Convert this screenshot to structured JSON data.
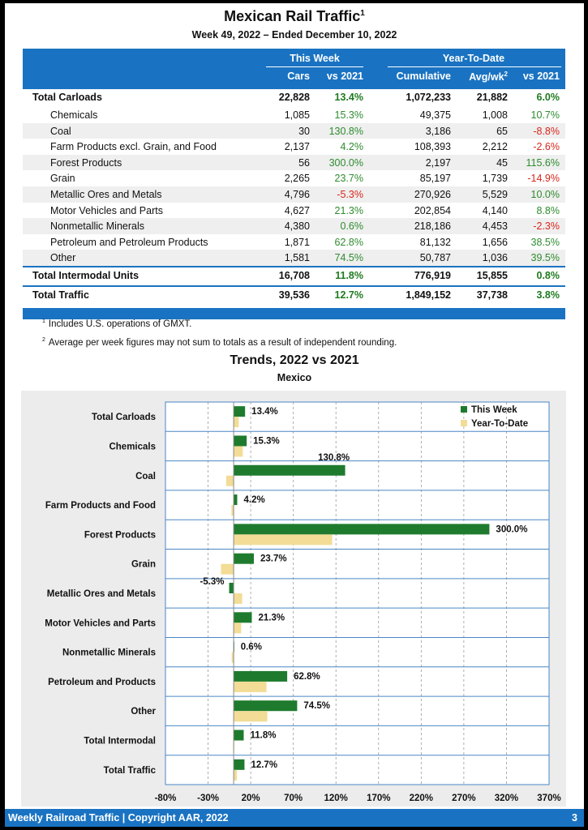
{
  "header": {
    "title": "Mexican Rail Traffic",
    "title_sup": "1",
    "subtitle": "Week 49, 2022 – Ended December 10, 2022"
  },
  "table": {
    "group_this_week": "This Week",
    "group_ytd": "Year-To-Date",
    "col_cars": "Cars",
    "col_vs2021": "vs 2021",
    "col_cumulative": "Cumulative",
    "col_avgwk": "Avg/wk",
    "col_avgwk_sup": "2",
    "col_vs2021_ytd": "vs 2021",
    "rows": [
      {
        "label": "Total Carloads",
        "cars": "22,828",
        "vs": "13.4%",
        "cum": "1,072,233",
        "avg": "21,882",
        "vs_ytd": "6.0%",
        "kind": "total"
      },
      {
        "label": "Chemicals",
        "cars": "1,085",
        "vs": "15.3%",
        "cum": "49,375",
        "avg": "1,008",
        "vs_ytd": "10.7%",
        "kind": "sub"
      },
      {
        "label": "Coal",
        "cars": "30",
        "vs": "130.8%",
        "cum": "3,186",
        "avg": "65",
        "vs_ytd": "-8.8%",
        "kind": "sub"
      },
      {
        "label": "Farm Products excl. Grain, and Food",
        "cars": "2,137",
        "vs": "4.2%",
        "cum": "108,393",
        "avg": "2,212",
        "vs_ytd": "-2.6%",
        "kind": "sub"
      },
      {
        "label": "Forest Products",
        "cars": "56",
        "vs": "300.0%",
        "cum": "2,197",
        "avg": "45",
        "vs_ytd": "115.6%",
        "kind": "sub"
      },
      {
        "label": "Grain",
        "cars": "2,265",
        "vs": "23.7%",
        "cum": "85,197",
        "avg": "1,739",
        "vs_ytd": "-14.9%",
        "kind": "sub"
      },
      {
        "label": "Metallic Ores and Metals",
        "cars": "4,796",
        "vs": "-5.3%",
        "cum": "270,926",
        "avg": "5,529",
        "vs_ytd": "10.0%",
        "kind": "sub"
      },
      {
        "label": "Motor Vehicles and Parts",
        "cars": "4,627",
        "vs": "21.3%",
        "cum": "202,854",
        "avg": "4,140",
        "vs_ytd": "8.8%",
        "kind": "sub"
      },
      {
        "label": "Nonmetallic Minerals",
        "cars": "4,380",
        "vs": "0.6%",
        "cum": "218,186",
        "avg": "4,453",
        "vs_ytd": "-2.3%",
        "kind": "sub"
      },
      {
        "label": "Petroleum and Petroleum Products",
        "cars": "1,871",
        "vs": "62.8%",
        "cum": "81,132",
        "avg": "1,656",
        "vs_ytd": "38.5%",
        "kind": "sub"
      },
      {
        "label": "Other",
        "cars": "1,581",
        "vs": "74.5%",
        "cum": "50,787",
        "avg": "1,036",
        "vs_ytd": "39.5%",
        "kind": "sub"
      },
      {
        "label": "Total Intermodal Units",
        "cars": "16,708",
        "vs": "11.8%",
        "cum": "776,919",
        "avg": "15,855",
        "vs_ytd": "0.8%",
        "kind": "total"
      },
      {
        "label": "Total Traffic",
        "cars": "39,536",
        "vs": "12.7%",
        "cum": "1,849,152",
        "avg": "37,738",
        "vs_ytd": "3.8%",
        "kind": "total"
      }
    ]
  },
  "notes": {
    "n1_mark": "1",
    "n1": "Includes U.S. operations of GMXT.",
    "n2_mark": "2",
    "n2": "Average per week figures may not sum to totals as a result of independent rounding."
  },
  "chart_title": "Trends, 2022 vs 2021",
  "chart_subtitle": "Mexico",
  "chart_data": {
    "type": "bar",
    "orientation": "horizontal",
    "categories": [
      "Total Carloads",
      "Chemicals",
      "Coal",
      "Farm Products and Food",
      "Forest Products",
      "Grain",
      "Metallic Ores and Metals",
      "Motor Vehicles and Parts",
      "Nonmetallic Minerals",
      "Petroleum and Products",
      "Other",
      "Total Intermodal",
      "Total Traffic"
    ],
    "series": [
      {
        "name": "This Week",
        "color": "#1e7b2e",
        "values": [
          13.4,
          15.3,
          130.8,
          4.2,
          300.0,
          23.7,
          -5.3,
          21.3,
          0.6,
          62.8,
          74.5,
          11.8,
          12.7
        ],
        "labels": [
          "13.4%",
          "15.3%",
          "130.8%",
          "4.2%",
          "300.0%",
          "23.7%",
          "-5.3%",
          "21.3%",
          "0.6%",
          "62.8%",
          "74.5%",
          "11.8%",
          "12.7%"
        ]
      },
      {
        "name": "Year-To-Date",
        "color": "#f2dc96",
        "values": [
          6.0,
          10.7,
          -8.8,
          -2.6,
          115.6,
          -14.9,
          10.0,
          8.8,
          -2.3,
          38.5,
          39.5,
          0.8,
          3.8
        ]
      }
    ],
    "xlim": [
      -80,
      370
    ],
    "xticks": [
      -80,
      -30,
      20,
      70,
      120,
      170,
      220,
      270,
      320,
      370
    ],
    "xtick_labels": [
      "-80%",
      "-30%",
      "20%",
      "70%",
      "120%",
      "170%",
      "220%",
      "270%",
      "320%",
      "370%"
    ],
    "legend": "top-right",
    "grid": true
  },
  "footer": {
    "left": "Weekly Railroad Traffic | Copyright AAR, 2022",
    "right": "3"
  },
  "colors": {
    "header_blue": "#1a73c2",
    "positive": "#2e8b2e",
    "negative": "#d9261c"
  }
}
